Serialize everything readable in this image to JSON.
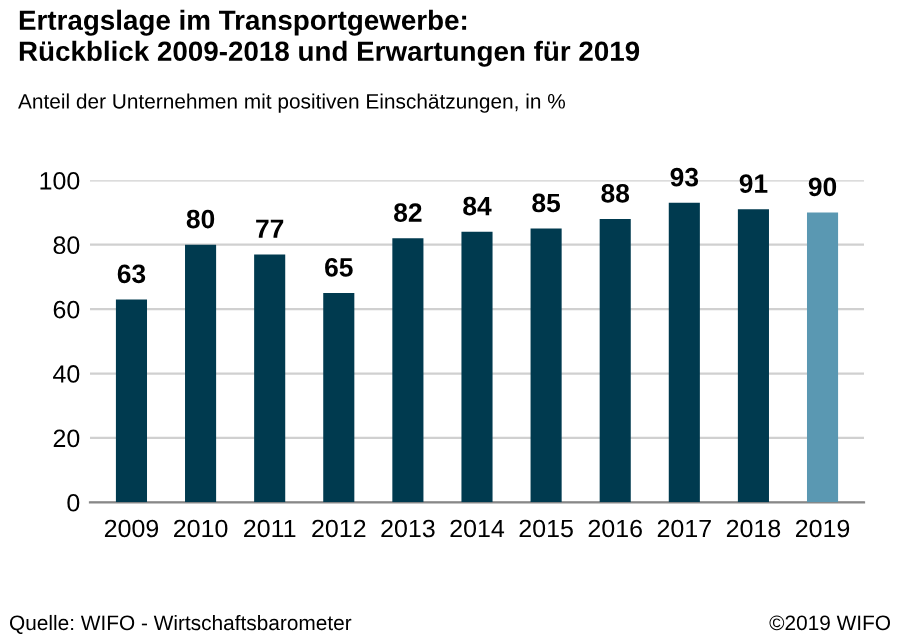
{
  "chart_data": {
    "type": "bar",
    "title": "Ertragslage im Transportgewerbe:\nRückblick 2009-2018 und Erwartungen für 2019",
    "subtitle": "Anteil der Unternehmen mit positiven Einschätzungen, in %",
    "categories": [
      "2009",
      "2010",
      "2011",
      "2012",
      "2013",
      "2014",
      "2015",
      "2016",
      "2017",
      "2018",
      "2019"
    ],
    "values": [
      63,
      80,
      77,
      65,
      82,
      84,
      85,
      88,
      93,
      91,
      90
    ],
    "colors": [
      "#003a4f",
      "#003a4f",
      "#003a4f",
      "#003a4f",
      "#003a4f",
      "#003a4f",
      "#003a4f",
      "#003a4f",
      "#003a4f",
      "#003a4f",
      "#5a98b2"
    ],
    "ylim": [
      0,
      100
    ],
    "yticks": [
      0,
      20,
      40,
      60,
      80,
      100
    ],
    "grid": "y",
    "data_labels": true,
    "annotations": [
      "Quelle: WIFO - Wirtschaftsbarometer",
      "©2019 WIFO"
    ]
  }
}
